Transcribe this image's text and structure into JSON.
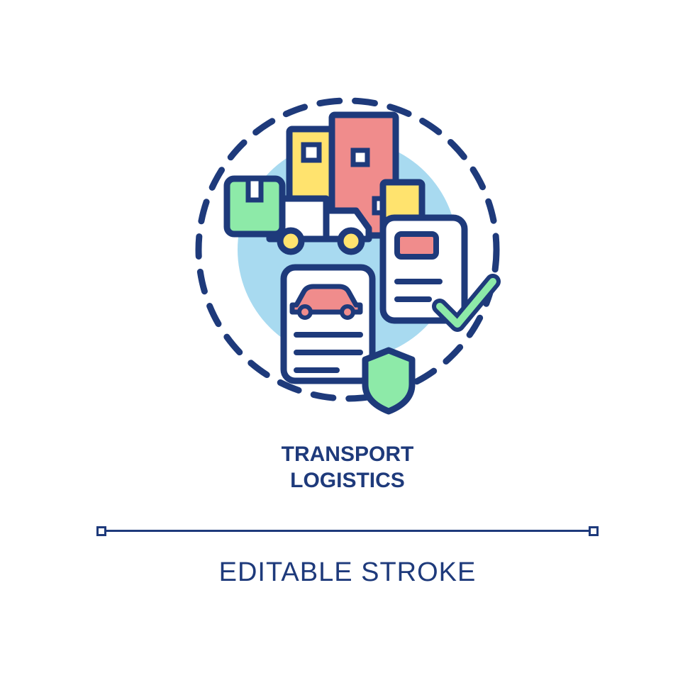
{
  "title_line1": "TRANSPORT",
  "title_line2": "LOGISTICS",
  "subtitle": "EDITABLE STROKE",
  "colors": {
    "stroke": "#1e3a7b",
    "bg_circle": "#a8daf0",
    "yellow": "#ffe36e",
    "pink": "#f08c8c",
    "green": "#8deaa8",
    "white": "#ffffff"
  },
  "typography": {
    "title_fontsize": 30,
    "title_color": "#1e3a7b",
    "subtitle_fontsize": 38,
    "subtitle_color": "#1e3a7b"
  },
  "divider": {
    "line_width": 680,
    "line_color": "#1e3a7b",
    "square_size": 14
  },
  "illustration": {
    "dash_circle_r": 210,
    "dash_pattern": "28 22",
    "bg_circle_r": 155,
    "stroke_width": 9
  }
}
